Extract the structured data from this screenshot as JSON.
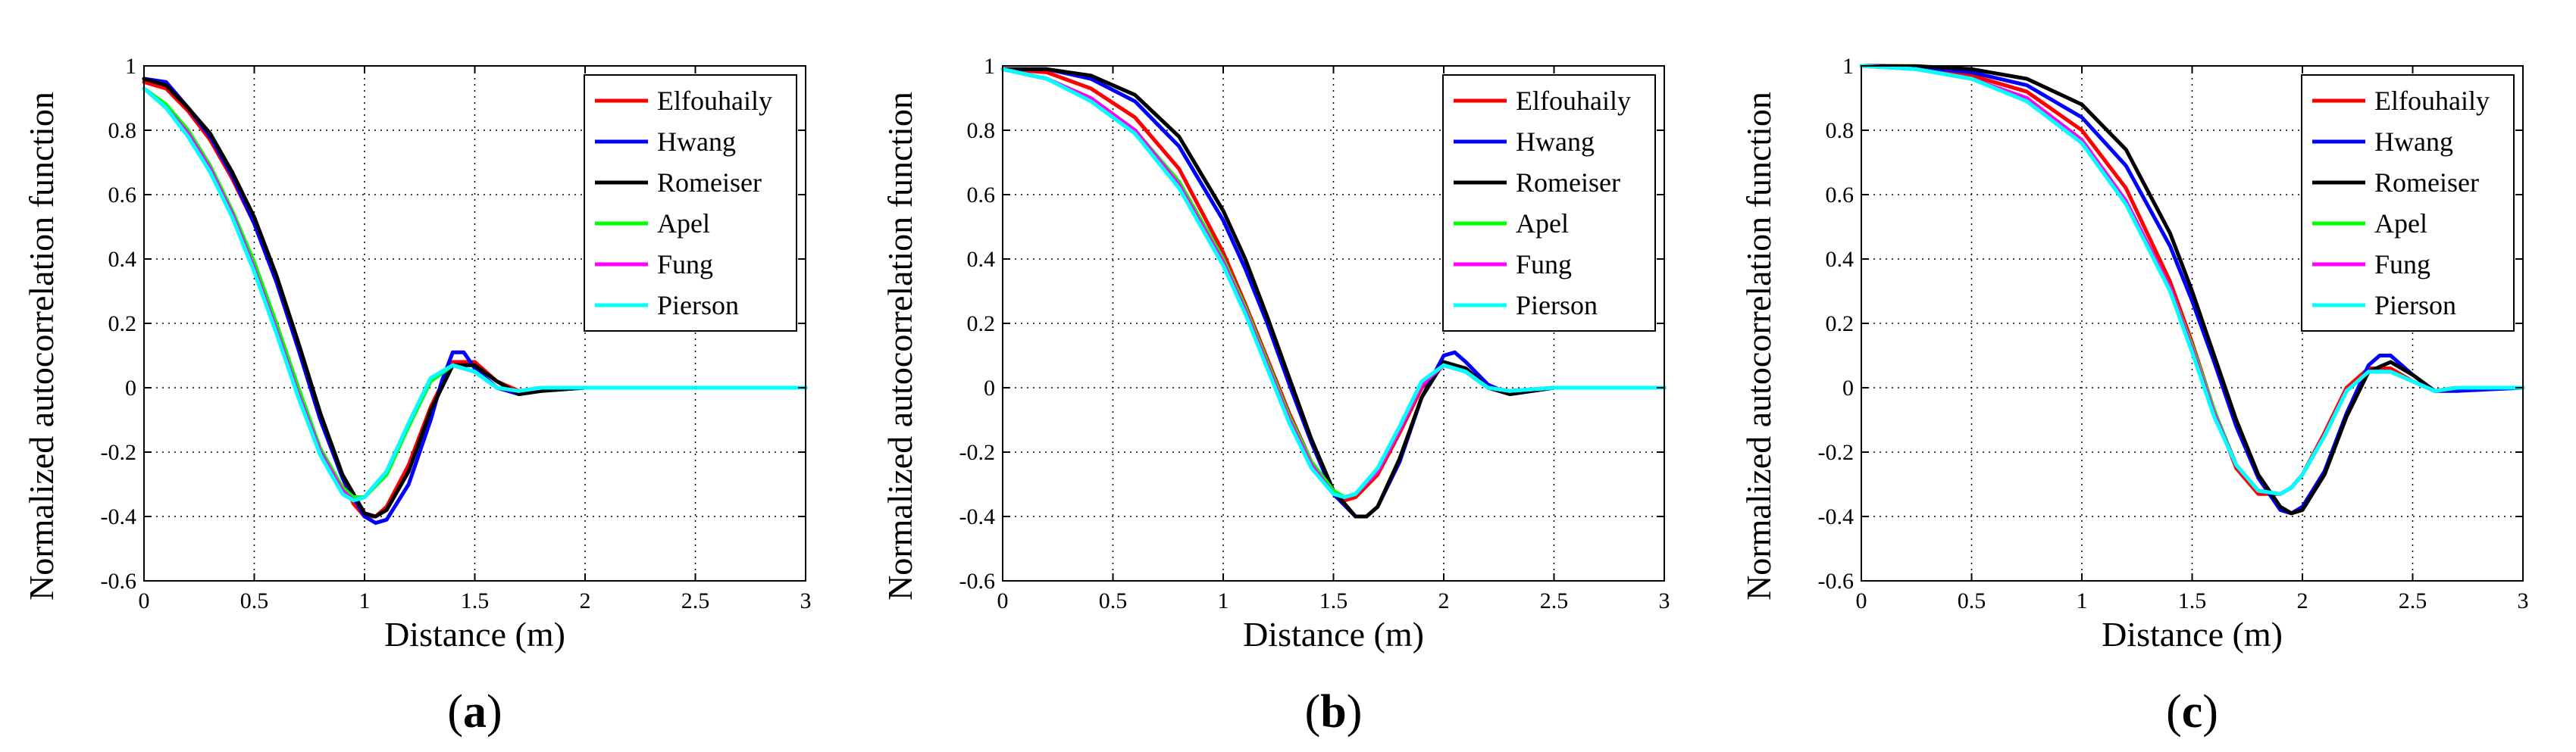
{
  "chart_data": [
    {
      "type": "line",
      "panel_label": "a",
      "xlabel": "Distance (m)",
      "ylabel": "Normalized autocorrelation function",
      "xlim": [
        0,
        3
      ],
      "ylim": [
        -0.6,
        1
      ],
      "xticks": [
        "0",
        "0.5",
        "1",
        "1.5",
        "2",
        "2.5",
        "3"
      ],
      "yticks": [
        "1",
        "0.8",
        "0.6",
        "0.4",
        "0.2",
        "0",
        "-0.2",
        "-0.4",
        "-0.6"
      ],
      "grid": true,
      "legend_position": "top-right",
      "series": [
        {
          "name": "Elfouhaily",
          "color": "#ff0000",
          "x": [
            0,
            0.1,
            0.2,
            0.3,
            0.4,
            0.5,
            0.6,
            0.7,
            0.8,
            0.9,
            0.95,
            1.0,
            1.05,
            1.1,
            1.2,
            1.3,
            1.4,
            1.5,
            1.6,
            1.7,
            1.8,
            2.0,
            2.5,
            3.0
          ],
          "y": [
            0.95,
            0.93,
            0.86,
            0.77,
            0.65,
            0.51,
            0.33,
            0.12,
            -0.1,
            -0.28,
            -0.36,
            -0.4,
            -0.4,
            -0.37,
            -0.24,
            -0.06,
            0.08,
            0.08,
            0.02,
            -0.01,
            -0.005,
            0,
            0,
            0
          ]
        },
        {
          "name": "Hwang",
          "color": "#0000ff",
          "x": [
            0,
            0.1,
            0.2,
            0.3,
            0.4,
            0.5,
            0.6,
            0.7,
            0.8,
            0.9,
            1.0,
            1.05,
            1.1,
            1.2,
            1.3,
            1.35,
            1.4,
            1.45,
            1.5,
            1.6,
            1.7,
            1.8,
            2.0,
            2.5,
            3.0
          ],
          "y": [
            0.96,
            0.95,
            0.87,
            0.78,
            0.66,
            0.51,
            0.33,
            0.12,
            -0.1,
            -0.28,
            -0.4,
            -0.42,
            -0.41,
            -0.3,
            -0.1,
            0.02,
            0.11,
            0.11,
            0.06,
            0.0,
            -0.02,
            -0.01,
            0,
            0,
            0
          ]
        },
        {
          "name": "Romeiser",
          "color": "#000000",
          "x": [
            0,
            0.1,
            0.2,
            0.3,
            0.4,
            0.5,
            0.6,
            0.7,
            0.8,
            0.9,
            1.0,
            1.05,
            1.1,
            1.2,
            1.3,
            1.4,
            1.5,
            1.6,
            1.7,
            1.8,
            2.0,
            2.5,
            3.0
          ],
          "y": [
            0.96,
            0.94,
            0.87,
            0.79,
            0.67,
            0.53,
            0.35,
            0.14,
            -0.08,
            -0.27,
            -0.39,
            -0.4,
            -0.38,
            -0.26,
            -0.07,
            0.07,
            0.07,
            0.02,
            -0.02,
            -0.01,
            0,
            0,
            0
          ]
        },
        {
          "name": "Apel",
          "color": "#00ff00",
          "x": [
            0,
            0.1,
            0.2,
            0.3,
            0.4,
            0.5,
            0.6,
            0.7,
            0.8,
            0.9,
            0.95,
            1.0,
            1.1,
            1.2,
            1.3,
            1.4,
            1.5,
            1.6,
            1.7,
            1.8,
            2.0,
            2.5,
            3.0
          ],
          "y": [
            0.93,
            0.88,
            0.8,
            0.69,
            0.55,
            0.39,
            0.2,
            0.0,
            -0.19,
            -0.31,
            -0.34,
            -0.34,
            -0.27,
            -0.12,
            0.02,
            0.07,
            0.05,
            0.0,
            -0.01,
            0,
            0,
            0,
            0
          ]
        },
        {
          "name": "Fung",
          "color": "#ff00ff",
          "x": [
            0,
            0.1,
            0.2,
            0.3,
            0.4,
            0.5,
            0.6,
            0.7,
            0.8,
            0.9,
            0.95,
            1.0,
            1.1,
            1.2,
            1.3,
            1.4,
            1.5,
            1.6,
            1.7,
            1.8,
            2.0,
            2.5,
            3.0
          ],
          "y": [
            0.93,
            0.87,
            0.79,
            0.68,
            0.54,
            0.37,
            0.18,
            -0.02,
            -0.2,
            -0.32,
            -0.35,
            -0.34,
            -0.26,
            -0.11,
            0.03,
            0.07,
            0.05,
            0.0,
            -0.01,
            0,
            0,
            0,
            0
          ]
        },
        {
          "name": "Pierson",
          "color": "#00ffff",
          "x": [
            0,
            0.1,
            0.2,
            0.3,
            0.4,
            0.5,
            0.6,
            0.7,
            0.8,
            0.9,
            0.95,
            1.0,
            1.1,
            1.2,
            1.3,
            1.4,
            1.5,
            1.6,
            1.7,
            1.8,
            2.0,
            2.5,
            3.0
          ],
          "y": [
            0.93,
            0.87,
            0.78,
            0.67,
            0.53,
            0.36,
            0.17,
            -0.03,
            -0.21,
            -0.33,
            -0.35,
            -0.34,
            -0.26,
            -0.11,
            0.03,
            0.07,
            0.05,
            0.0,
            -0.01,
            0,
            0,
            0,
            0
          ]
        }
      ]
    },
    {
      "type": "line",
      "panel_label": "b",
      "xlabel": "Distance (m)",
      "ylabel": "Normalized autocorrelation function",
      "xlim": [
        0,
        3
      ],
      "ylim": [
        -0.6,
        1
      ],
      "xticks": [
        "0",
        "0.5",
        "1",
        "1.5",
        "2",
        "2.5",
        "3"
      ],
      "yticks": [
        "1",
        "0.8",
        "0.6",
        "0.4",
        "0.2",
        "0",
        "-0.2",
        "-0.4",
        "-0.6"
      ],
      "grid": true,
      "legend_position": "top-right",
      "series": [
        {
          "name": "Elfouhaily",
          "color": "#ff0000",
          "x": [
            0,
            0.2,
            0.4,
            0.6,
            0.8,
            1.0,
            1.1,
            1.2,
            1.3,
            1.4,
            1.5,
            1.55,
            1.6,
            1.7,
            1.8,
            1.9,
            2.0,
            2.1,
            2.2,
            2.3,
            2.5,
            3.0
          ],
          "y": [
            0.99,
            0.98,
            0.93,
            0.84,
            0.68,
            0.42,
            0.26,
            0.09,
            -0.08,
            -0.23,
            -0.33,
            -0.35,
            -0.34,
            -0.27,
            -0.14,
            0.0,
            0.07,
            0.05,
            0.0,
            -0.01,
            0,
            0
          ]
        },
        {
          "name": "Hwang",
          "color": "#0000ff",
          "x": [
            0,
            0.2,
            0.4,
            0.6,
            0.8,
            1.0,
            1.1,
            1.2,
            1.3,
            1.4,
            1.5,
            1.6,
            1.65,
            1.7,
            1.8,
            1.9,
            2.0,
            2.05,
            2.1,
            2.2,
            2.3,
            2.5,
            3.0
          ],
          "y": [
            0.99,
            0.99,
            0.96,
            0.89,
            0.75,
            0.52,
            0.37,
            0.2,
            0.01,
            -0.17,
            -0.33,
            -0.4,
            -0.4,
            -0.37,
            -0.23,
            -0.03,
            0.1,
            0.11,
            0.08,
            0.01,
            -0.02,
            0,
            0
          ]
        },
        {
          "name": "Romeiser",
          "color": "#000000",
          "x": [
            0,
            0.2,
            0.4,
            0.6,
            0.8,
            1.0,
            1.1,
            1.2,
            1.3,
            1.4,
            1.5,
            1.6,
            1.65,
            1.7,
            1.8,
            1.9,
            2.0,
            2.1,
            2.2,
            2.3,
            2.5,
            3.0
          ],
          "y": [
            0.99,
            0.99,
            0.97,
            0.91,
            0.78,
            0.55,
            0.4,
            0.22,
            0.03,
            -0.16,
            -0.32,
            -0.4,
            -0.4,
            -0.37,
            -0.22,
            -0.03,
            0.08,
            0.06,
            0.0,
            -0.02,
            0,
            0
          ]
        },
        {
          "name": "Apel",
          "color": "#00ff00",
          "x": [
            0,
            0.2,
            0.4,
            0.6,
            0.8,
            1.0,
            1.1,
            1.2,
            1.3,
            1.4,
            1.5,
            1.55,
            1.6,
            1.7,
            1.8,
            1.9,
            2.0,
            2.1,
            2.2,
            2.3,
            2.5,
            3.0
          ],
          "y": [
            0.99,
            0.96,
            0.9,
            0.8,
            0.64,
            0.4,
            0.25,
            0.08,
            -0.09,
            -0.23,
            -0.32,
            -0.34,
            -0.33,
            -0.26,
            -0.13,
            0.01,
            0.07,
            0.05,
            0.0,
            -0.01,
            0,
            0
          ]
        },
        {
          "name": "Fung",
          "color": "#ff00ff",
          "x": [
            0,
            0.2,
            0.4,
            0.6,
            0.8,
            1.0,
            1.1,
            1.2,
            1.3,
            1.4,
            1.5,
            1.55,
            1.6,
            1.7,
            1.8,
            1.9,
            2.0,
            2.1,
            2.2,
            2.3,
            2.5,
            3.0
          ],
          "y": [
            0.99,
            0.96,
            0.9,
            0.8,
            0.63,
            0.39,
            0.24,
            0.07,
            -0.1,
            -0.24,
            -0.33,
            -0.34,
            -0.33,
            -0.26,
            -0.13,
            0.01,
            0.07,
            0.05,
            0.0,
            -0.01,
            0,
            0
          ]
        },
        {
          "name": "Pierson",
          "color": "#00ffff",
          "x": [
            0,
            0.2,
            0.4,
            0.6,
            0.8,
            1.0,
            1.1,
            1.2,
            1.3,
            1.4,
            1.5,
            1.55,
            1.6,
            1.7,
            1.8,
            1.9,
            2.0,
            2.1,
            2.2,
            2.3,
            2.5,
            3.0
          ],
          "y": [
            0.99,
            0.96,
            0.89,
            0.79,
            0.62,
            0.38,
            0.23,
            0.06,
            -0.11,
            -0.25,
            -0.33,
            -0.34,
            -0.33,
            -0.25,
            -0.12,
            0.02,
            0.07,
            0.05,
            0.0,
            -0.01,
            0,
            0
          ]
        }
      ]
    },
    {
      "type": "line",
      "panel_label": "c",
      "xlabel": "Distance (m)",
      "ylabel": "Normalized autocorrelation function",
      "xlim": [
        0,
        3
      ],
      "ylim": [
        -0.6,
        1
      ],
      "xticks": [
        "0",
        "0.5",
        "1",
        "1.5",
        "2",
        "2.5",
        "3"
      ],
      "yticks": [
        "1",
        "0.8",
        "0.6",
        "0.4",
        "0.2",
        "0",
        "-0.2",
        "-0.4",
        "-0.6"
      ],
      "grid": true,
      "legend_position": "top-right",
      "series": [
        {
          "name": "Elfouhaily",
          "color": "#ff0000",
          "x": [
            0,
            0.25,
            0.5,
            0.75,
            1.0,
            1.2,
            1.4,
            1.5,
            1.6,
            1.7,
            1.8,
            1.9,
            1.95,
            2.0,
            2.1,
            2.2,
            2.3,
            2.4,
            2.5,
            2.6,
            2.7,
            3.0
          ],
          "y": [
            1.0,
            0.995,
            0.97,
            0.92,
            0.8,
            0.62,
            0.33,
            0.14,
            -0.07,
            -0.25,
            -0.33,
            -0.33,
            -0.31,
            -0.27,
            -0.14,
            0.0,
            0.06,
            0.06,
            0.02,
            -0.01,
            0,
            0
          ]
        },
        {
          "name": "Hwang",
          "color": "#0000ff",
          "x": [
            0,
            0.25,
            0.5,
            0.75,
            1.0,
            1.2,
            1.4,
            1.5,
            1.6,
            1.7,
            1.8,
            1.9,
            1.95,
            2.0,
            2.1,
            2.2,
            2.3,
            2.35,
            2.4,
            2.5,
            2.6,
            2.7,
            3.0
          ],
          "y": [
            1.0,
            0.998,
            0.98,
            0.94,
            0.84,
            0.69,
            0.44,
            0.27,
            0.08,
            -0.12,
            -0.28,
            -0.38,
            -0.39,
            -0.37,
            -0.26,
            -0.08,
            0.07,
            0.1,
            0.1,
            0.04,
            -0.01,
            -0.01,
            0
          ]
        },
        {
          "name": "Romeiser",
          "color": "#000000",
          "x": [
            0,
            0.25,
            0.5,
            0.75,
            1.0,
            1.2,
            1.4,
            1.5,
            1.6,
            1.7,
            1.8,
            1.9,
            1.95,
            2.0,
            2.1,
            2.2,
            2.3,
            2.4,
            2.5,
            2.6,
            2.7,
            3.0
          ],
          "y": [
            1.0,
            0.999,
            0.99,
            0.96,
            0.88,
            0.74,
            0.48,
            0.3,
            0.1,
            -0.1,
            -0.27,
            -0.37,
            -0.39,
            -0.38,
            -0.27,
            -0.09,
            0.05,
            0.08,
            0.04,
            -0.01,
            0,
            0
          ]
        },
        {
          "name": "Apel",
          "color": "#00ff00",
          "x": [
            0,
            0.25,
            0.5,
            0.75,
            1.0,
            1.2,
            1.4,
            1.5,
            1.6,
            1.7,
            1.8,
            1.9,
            1.95,
            2.0,
            2.1,
            2.2,
            2.3,
            2.4,
            2.5,
            2.6,
            2.7,
            3.0
          ],
          "y": [
            1.0,
            0.99,
            0.96,
            0.9,
            0.77,
            0.58,
            0.31,
            0.13,
            -0.07,
            -0.24,
            -0.32,
            -0.33,
            -0.31,
            -0.27,
            -0.15,
            -0.01,
            0.05,
            0.05,
            0.02,
            -0.01,
            0,
            0
          ]
        },
        {
          "name": "Fung",
          "color": "#ff00ff",
          "x": [
            0,
            0.25,
            0.5,
            0.75,
            1.0,
            1.2,
            1.4,
            1.5,
            1.6,
            1.7,
            1.8,
            1.9,
            1.95,
            2.0,
            2.1,
            2.2,
            2.3,
            2.4,
            2.5,
            2.6,
            2.7,
            3.0
          ],
          "y": [
            1.0,
            0.99,
            0.96,
            0.9,
            0.77,
            0.58,
            0.31,
            0.12,
            -0.08,
            -0.24,
            -0.32,
            -0.33,
            -0.31,
            -0.27,
            -0.15,
            -0.01,
            0.05,
            0.05,
            0.02,
            -0.01,
            0,
            0
          ]
        },
        {
          "name": "Pierson",
          "color": "#00ffff",
          "x": [
            0,
            0.25,
            0.5,
            0.75,
            1.0,
            1.2,
            1.4,
            1.5,
            1.6,
            1.7,
            1.8,
            1.9,
            1.95,
            2.0,
            2.1,
            2.2,
            2.3,
            2.4,
            2.5,
            2.6,
            2.7,
            3.0
          ],
          "y": [
            1.0,
            0.99,
            0.96,
            0.89,
            0.76,
            0.57,
            0.3,
            0.11,
            -0.09,
            -0.24,
            -0.32,
            -0.33,
            -0.31,
            -0.27,
            -0.15,
            -0.01,
            0.05,
            0.05,
            0.02,
            -0.01,
            0,
            0
          ]
        }
      ]
    }
  ]
}
